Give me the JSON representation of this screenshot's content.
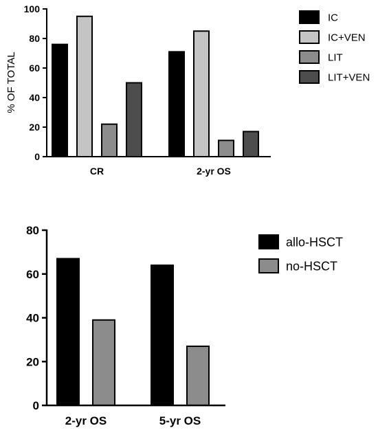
{
  "chart_data": [
    {
      "type": "bar",
      "title": "",
      "xlabel": "",
      "ylabel": "% OF TOTAL",
      "ylim": [
        0,
        100
      ],
      "yticks": [
        0,
        20,
        40,
        60,
        80,
        100
      ],
      "categories": [
        "CR",
        "2-yr OS"
      ],
      "series": [
        {
          "name": "IC",
          "values": [
            76,
            71
          ],
          "color": "#000000"
        },
        {
          "name": "IC+VEN",
          "values": [
            95,
            85
          ],
          "color": "#c4c4c4"
        },
        {
          "name": "LIT",
          "values": [
            22,
            11
          ],
          "color": "#8c8c8c"
        },
        {
          "name": "LIT+VEN",
          "values": [
            50,
            17
          ],
          "color": "#4d4d4d"
        }
      ],
      "grid": false,
      "legend": "right"
    },
    {
      "type": "bar",
      "title": "",
      "xlabel": "",
      "ylabel": "",
      "ylim": [
        0,
        80
      ],
      "yticks": [
        0,
        20,
        40,
        60,
        80
      ],
      "categories": [
        "2-yr OS",
        "5-yr OS"
      ],
      "series": [
        {
          "name": "allo-HSCT",
          "values": [
            67,
            64
          ],
          "color": "#000000"
        },
        {
          "name": "no-HSCT",
          "values": [
            39,
            27
          ],
          "color": "#8c8c8c"
        }
      ],
      "grid": false,
      "legend": "right"
    }
  ]
}
